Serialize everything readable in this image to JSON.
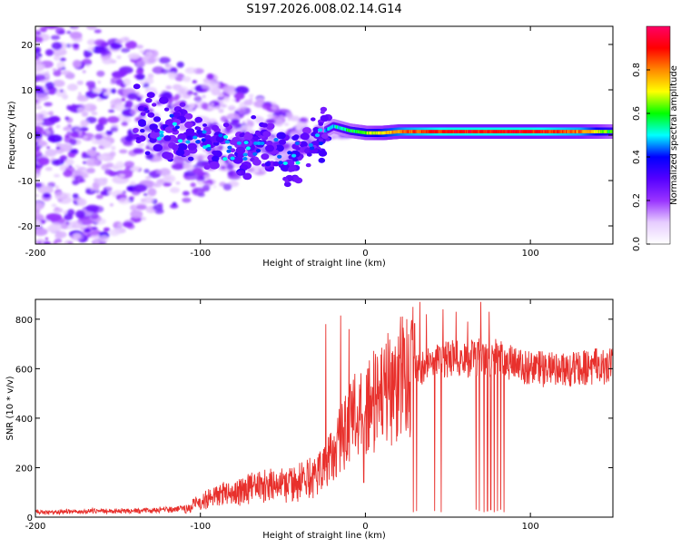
{
  "title": "S197.2026.008.02.14.G14",
  "chart_data": [
    {
      "type": "heatmap",
      "name": "spectrogram",
      "xlabel": "Height of straight line (km)",
      "ylabel": "Frequency (Hz)",
      "xlim": [
        -200,
        150
      ],
      "ylim": [
        -24,
        24
      ],
      "xticks": [
        -200,
        -100,
        0,
        100
      ],
      "xtick_labels": [
        "-200",
        "-100",
        "0",
        "100"
      ],
      "yticks": [
        20,
        10,
        0,
        -10,
        -20
      ],
      "ytick_labels": [
        "20",
        "10",
        "0",
        "-10",
        "-20"
      ],
      "colorbar": {
        "label": "Normalized spectral amplitude",
        "range": [
          0,
          1
        ],
        "ticks": [
          0.0,
          0.2,
          0.4,
          0.6,
          0.8
        ],
        "tick_labels": [
          "0.0",
          "0.2",
          "0.4",
          "0.6",
          "0.8"
        ],
        "colormap": [
          "#ffffff",
          "#e6ccff",
          "#9933ff",
          "#5500ff",
          "#0000ff",
          "#00ffff",
          "#00ff00",
          "#ffff00",
          "#ff8800",
          "#ff0000",
          "#ff0066"
        ]
      },
      "ridge_profile": [
        [
          -200,
          0
        ],
        [
          -140,
          3
        ],
        [
          -120,
          2
        ],
        [
          -100,
          -2
        ],
        [
          -80,
          -3
        ],
        [
          -60,
          -2
        ],
        [
          -45,
          -6
        ],
        [
          -38,
          -3
        ],
        [
          -32,
          -2
        ],
        [
          -25,
          1
        ],
        [
          -20,
          2
        ],
        [
          -10,
          1
        ],
        [
          0,
          0.5
        ],
        [
          10,
          0.5
        ],
        [
          20,
          0.8
        ],
        [
          60,
          0.8
        ],
        [
          100,
          0.8
        ],
        [
          150,
          0.8
        ]
      ],
      "ridge_amplitude": [
        [
          -200,
          0.12
        ],
        [
          -130,
          0.22
        ],
        [
          -110,
          0.3
        ],
        [
          -80,
          0.32
        ],
        [
          -50,
          0.28
        ],
        [
          -35,
          0.3
        ],
        [
          -22,
          0.5
        ],
        [
          -5,
          0.62
        ],
        [
          10,
          0.75
        ],
        [
          25,
          0.85
        ],
        [
          50,
          0.92
        ],
        [
          100,
          0.92
        ],
        [
          130,
          0.85
        ],
        [
          150,
          0.6
        ]
      ],
      "scatter_extent": [
        [
          -200,
          30
        ],
        [
          -150,
          22
        ],
        [
          -100,
          14
        ],
        [
          -60,
          8
        ],
        [
          -40,
          4
        ],
        [
          -20,
          0
        ]
      ]
    },
    {
      "type": "line",
      "name": "snr",
      "xlabel": "Height of straight line (km)",
      "ylabel": "SNR (10 * v/v)",
      "xlim": [
        -200,
        150
      ],
      "ylim": [
        0,
        880
      ],
      "xticks": [
        -200,
        -100,
        0,
        100
      ],
      "xtick_labels": [
        "-200",
        "-100",
        "0",
        "100"
      ],
      "yticks": [
        0,
        200,
        400,
        600,
        800
      ],
      "ytick_labels": [
        "0",
        "200",
        "400",
        "600",
        "800"
      ],
      "color": "#e8302c",
      "envelope": [
        [
          -200,
          20
        ],
        [
          -180,
          22
        ],
        [
          -160,
          25
        ],
        [
          -140,
          25
        ],
        [
          -120,
          30
        ],
        [
          -110,
          35
        ],
        [
          -100,
          60
        ],
        [
          -90,
          85
        ],
        [
          -80,
          100
        ],
        [
          -70,
          115
        ],
        [
          -60,
          125
        ],
        [
          -50,
          130
        ],
        [
          -40,
          140
        ],
        [
          -30,
          165
        ],
        [
          -25,
          200
        ],
        [
          -20,
          250
        ],
        [
          -15,
          320
        ],
        [
          -10,
          380
        ],
        [
          -5,
          430
        ],
        [
          0,
          450
        ],
        [
          5,
          470
        ],
        [
          10,
          490
        ],
        [
          15,
          520
        ],
        [
          20,
          560
        ],
        [
          30,
          600
        ],
        [
          40,
          620
        ],
        [
          50,
          640
        ],
        [
          60,
          640
        ],
        [
          70,
          650
        ],
        [
          80,
          640
        ],
        [
          90,
          620
        ],
        [
          100,
          600
        ],
        [
          120,
          600
        ],
        [
          150,
          610
        ]
      ],
      "spikes": [
        [
          -24,
          780
        ],
        [
          -15,
          815
        ],
        [
          -10,
          760
        ],
        [
          25,
          800
        ],
        [
          33,
          870
        ],
        [
          37,
          820
        ],
        [
          47,
          840
        ],
        [
          55,
          830
        ],
        [
          62,
          790
        ],
        [
          70,
          870
        ],
        [
          75,
          830
        ],
        [
          80,
          860
        ],
        [
          84,
          800
        ],
        [
          140,
          680
        ]
      ],
      "dropouts": [
        [
          -1,
          140
        ],
        [
          29,
          20
        ],
        [
          31,
          25
        ],
        [
          42,
          25
        ],
        [
          46,
          20
        ],
        [
          67,
          30
        ],
        [
          69,
          25
        ],
        [
          72,
          20
        ],
        [
          74,
          25
        ],
        [
          76,
          30
        ],
        [
          78,
          20
        ],
        [
          80,
          25
        ],
        [
          82,
          30
        ],
        [
          84,
          20
        ]
      ]
    }
  ]
}
